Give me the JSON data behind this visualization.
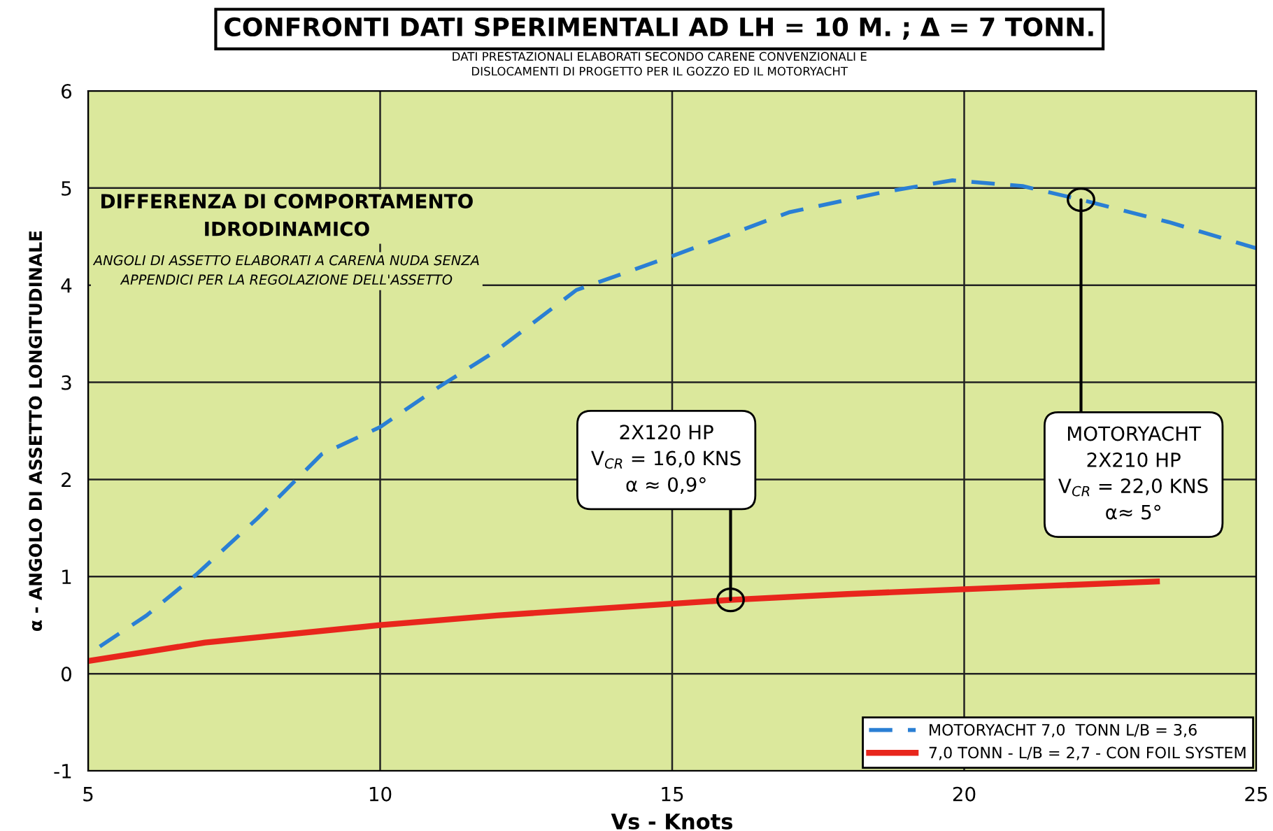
{
  "chart_data": {
    "type": "line",
    "title": "CONFRONTI DATI SPERIMENTALI AD LH = 10 M. ; Δ = 7 TONN.",
    "subtitle": "DATI PRESTAZIONALI ELABORATI SECONDO CARENE CONVENZIONALI E\nDISLOCAMENTI DI PROGETTO PER IL GOZZO ED IL MOTORYACHT",
    "xlabel": "Vs - Knots",
    "ylabel": "α - ANGOLO DI ASSETTO LONGITUDINALE",
    "series": [
      {
        "name": "MOTORYACHT 7,0  TONN L/B = 3,6",
        "color": "#2a7fd4",
        "line_style": "dashed",
        "x": [
          5.2,
          6.0,
          6.85,
          7.9,
          9.0,
          10.0,
          11.0,
          12.0,
          13.36,
          15.0,
          17.0,
          18.55,
          19.8,
          21.0,
          22.0,
          23.5,
          25.0
        ],
        "values": [
          0.28,
          0.6,
          1.02,
          1.6,
          2.26,
          2.54,
          2.95,
          3.33,
          3.95,
          4.3,
          4.75,
          4.95,
          5.08,
          5.02,
          4.88,
          4.65,
          4.38
        ]
      },
      {
        "name": "7,0 TONN - L/B = 2,7 - CON FOIL SYSTEM",
        "color": "#e8261c",
        "line_style": "solid",
        "x": [
          5.0,
          7.0,
          10.0,
          12.0,
          15.0,
          16.0,
          18.0,
          20.0,
          23.3
        ],
        "values": [
          0.13,
          0.32,
          0.5,
          0.6,
          0.72,
          0.76,
          0.82,
          0.87,
          0.95
        ]
      }
    ],
    "xlim": [
      5,
      25
    ],
    "xticks": [
      5,
      10,
      15,
      20,
      25
    ],
    "ylim": [
      -1,
      6
    ],
    "yticks": [
      -1,
      0,
      1,
      2,
      3,
      4,
      5,
      6
    ],
    "grid": true,
    "legend": "bottom right",
    "marker": "none",
    "annotations": [
      "DIFFERENZA DI COMPORTAMENTO\nIDRODINAMICO",
      "ANGOLI DI ASSETTO ELABORATI A CARENA NUDA SENZA\nAPPENDICI PER LA REGOLAZIONE DELL'ASSETTO",
      {
        "text": "2X120 HP\nV$_{CR}$ = 16,0 KNS\nα ≈ 0,9°",
        "x": 16,
        "y": 0.76
      },
      {
        "text": "MOTORYACHT\n2X210 HP\nV$_{CR}$ = 22,0 KNS\nα≈ 5°",
        "x": 22,
        "y": 4.88
      }
    ]
  }
}
